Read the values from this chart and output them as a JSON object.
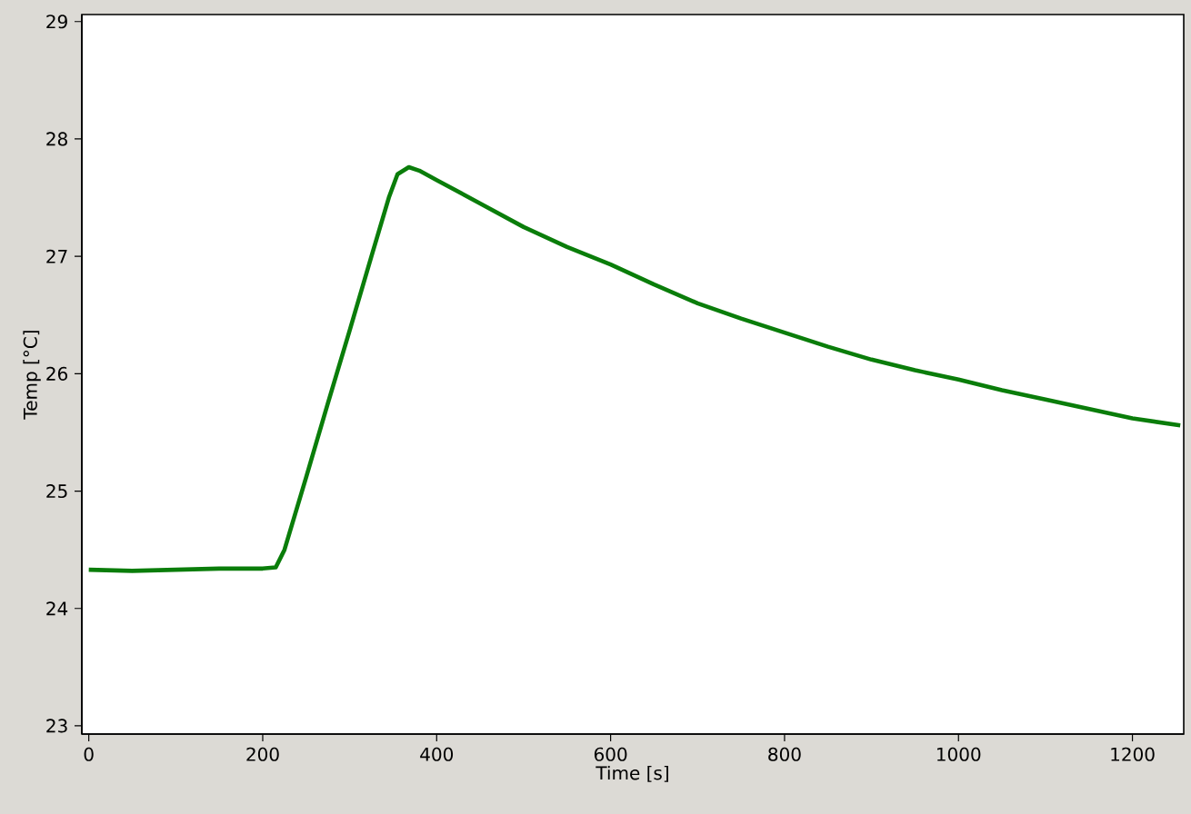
{
  "chart_data": {
    "type": "line",
    "xlabel": "Time [s]",
    "ylabel": "Temp [°C]",
    "xlim": [
      -8,
      1259
    ],
    "ylim": [
      22.93,
      29.06
    ],
    "xticks": [
      0,
      200,
      400,
      600,
      800,
      1000,
      1200
    ],
    "yticks": [
      23,
      24,
      25,
      26,
      27,
      28,
      29
    ],
    "grid": false,
    "marker": "none",
    "line_style": "solid",
    "series": [
      {
        "color": "#0a7d0a",
        "x": [
          0,
          50,
          100,
          150,
          200,
          215,
          225,
          250,
          275,
          300,
          325,
          345,
          355,
          368,
          380,
          400,
          450,
          500,
          550,
          600,
          650,
          700,
          750,
          800,
          850,
          900,
          950,
          1000,
          1050,
          1100,
          1150,
          1200,
          1255
        ],
        "values": [
          24.33,
          24.32,
          24.33,
          24.34,
          24.34,
          24.35,
          24.5,
          25.12,
          25.75,
          26.37,
          27.0,
          27.5,
          27.7,
          27.76,
          27.73,
          27.65,
          27.45,
          27.25,
          27.08,
          26.93,
          26.76,
          26.6,
          26.47,
          26.35,
          26.23,
          26.12,
          26.03,
          25.95,
          25.86,
          25.78,
          25.7,
          25.62,
          25.56
        ]
      }
    ]
  }
}
